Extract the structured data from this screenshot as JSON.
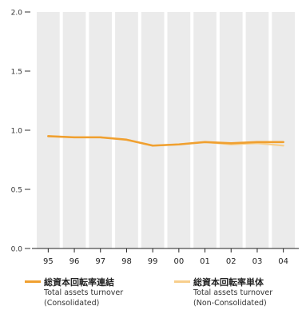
{
  "chart_data": {
    "type": "line",
    "categories": [
      "95",
      "96",
      "97",
      "98",
      "99",
      "00",
      "01",
      "02",
      "03",
      "04"
    ],
    "series": [
      {
        "name": "総資本回転率連結",
        "subtitle_1": "Total assets turnover",
        "subtitle_2": "(Consolidated)",
        "color": "#f0a030",
        "values": [
          0.95,
          0.94,
          0.94,
          0.92,
          0.87,
          0.88,
          0.9,
          0.89,
          0.9,
          0.9
        ]
      },
      {
        "name": "総資本回転率単体",
        "subtitle_1": "Total assets turnover",
        "subtitle_2": "(Non-Consolidated)",
        "color": "#f8cf8c",
        "values": [
          0.95,
          0.94,
          0.94,
          0.92,
          0.87,
          0.88,
          0.9,
          0.88,
          0.89,
          0.87
        ]
      }
    ],
    "yticks": [
      "2.0",
      "1.5",
      "1.0",
      "0.5",
      "0.0"
    ],
    "ylim": [
      0,
      2
    ],
    "column_bands": true,
    "band_color": "#ebebeb",
    "legend_position": "bottom"
  }
}
